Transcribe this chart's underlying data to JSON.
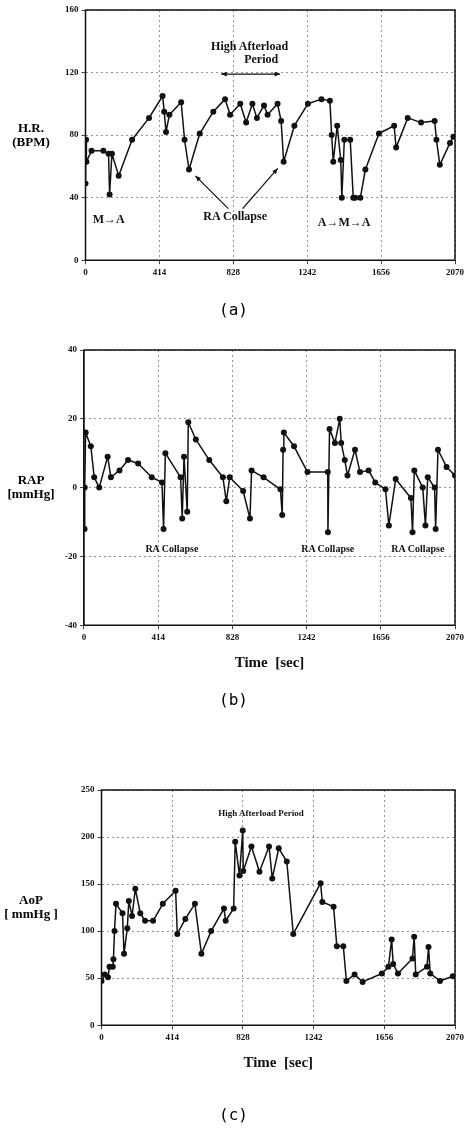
{
  "chart_data": [
    {
      "type": "line",
      "title": "(a)",
      "ylabel": "H.R.\n(BPM)",
      "marker": "circle",
      "line_style": "solid",
      "grid": true,
      "legend": false,
      "xlim": [
        0,
        2070
      ],
      "xticks": [
        0,
        414,
        828,
        1242,
        1656,
        2070
      ],
      "ylim": [
        0,
        160
      ],
      "yticks": [
        0,
        40,
        80,
        120,
        160
      ],
      "series": [
        {
          "color": "#111111",
          "x": [
            0,
            3,
            5,
            34,
            100,
            129,
            135,
            148,
            186,
            261,
            356,
            432,
            441,
            451,
            470,
            536,
            555,
            580,
            640,
            716,
            782,
            810,
            867,
            900,
            935,
            960,
            1000,
            1020,
            1076,
            1096,
            1110,
            1170,
            1246,
            1322,
            1369,
            1379,
            1388,
            1410,
            1430,
            1436,
            1450,
            1483,
            1500,
            1511,
            1540,
            1568,
            1644,
            1729,
            1740,
            1805,
            1880,
            1956,
            1966,
            1985,
            2042,
            2061
          ],
          "values": [
            49,
            77,
            63,
            70,
            70,
            68,
            42,
            68,
            54,
            77,
            91,
            105,
            95,
            82,
            93,
            101,
            77,
            58,
            81,
            95,
            103,
            93,
            100,
            88,
            100,
            91,
            99,
            93,
            100,
            89,
            63,
            86,
            100,
            103,
            102,
            80,
            63,
            86,
            64,
            40,
            77,
            77,
            40,
            40,
            40,
            58,
            81,
            86,
            72,
            91,
            88,
            89,
            77,
            61,
            75,
            79
          ]
        }
      ],
      "annotations": [
        "High Afterload Period",
        "M→A",
        {
          "text": "RA Collapse",
          "x": 580,
          "y": 58
        },
        "A→M→A"
      ]
    },
    {
      "type": "line",
      "title": "(b)",
      "xlabel": "Time  [sec]",
      "ylabel": "RAP\n[mmHg]",
      "marker": "circle",
      "line_style": "solid",
      "grid": true,
      "legend": false,
      "xlim": [
        0,
        2070
      ],
      "xticks": [
        0,
        414,
        828,
        1242,
        1656,
        2070
      ],
      "ylim": [
        -40,
        40
      ],
      "yticks": [
        -40,
        -20,
        0,
        20,
        40
      ],
      "series": [
        {
          "color": "#111111",
          "x": [
            3,
            4,
            9,
            38,
            57,
            85,
            132,
            150,
            198,
            246,
            302,
            378,
            435,
            444,
            454,
            539,
            548,
            558,
            576,
            582,
            624,
            699,
            775,
            794,
            813,
            888,
            926,
            935,
            1002,
            1096,
            1106,
            1111,
            1115,
            1172,
            1247,
            1360,
            1361,
            1370,
            1400,
            1427,
            1435,
            1455,
            1470,
            1512,
            1540,
            1588,
            1625,
            1682,
            1701,
            1739,
            1824,
            1833,
            1843,
            1890,
            1905,
            1918,
            1956,
            1962,
            1975,
            2023,
            2070
          ],
          "values": [
            -12,
            0,
            16,
            12,
            3,
            0,
            9,
            3,
            5,
            8,
            7,
            3,
            1.5,
            -12,
            10,
            3,
            -9,
            9,
            -7,
            19,
            14,
            8,
            3,
            -4,
            3,
            -1,
            -9,
            5,
            3,
            -0.5,
            -8,
            11,
            16,
            12,
            4.5,
            4.5,
            -13,
            17,
            13,
            20,
            13,
            8,
            3.5,
            11,
            4.5,
            5,
            1.5,
            -0.5,
            -11,
            2.5,
            -3,
            -13,
            5,
            0,
            -11,
            3,
            0,
            -12,
            11,
            6,
            3.5
          ]
        }
      ],
      "annotations": [
        "RA Collapse",
        "RA Collapse",
        "RA Collapse"
      ]
    },
    {
      "type": "line",
      "title": "(c)",
      "xlabel": "Time  [sec]",
      "ylabel": "AoP\n[ mmHg ]",
      "marker": "circle",
      "line_style": "solid",
      "grid": true,
      "legend": false,
      "xlim": [
        0,
        2070
      ],
      "xticks": [
        0,
        414,
        828,
        1242,
        1656,
        2070
      ],
      "ylim": [
        0,
        250
      ],
      "yticks": [
        0,
        50,
        100,
        150,
        200,
        250
      ],
      "series": [
        {
          "color": "#111111",
          "x": [
            0,
            19,
            38,
            47,
            66,
            70,
            76,
            85,
            123,
            132,
            151,
            160,
            179,
            198,
            227,
            255,
            302,
            359,
            434,
            444,
            491,
            547,
            585,
            642,
            717,
            727,
            774,
            783,
            808,
            827,
            830,
            878,
            925,
            981,
            1000,
            1038,
            1085,
            1123,
            1283,
            1293,
            1359,
            1378,
            1416,
            1434,
            1482,
            1529,
            1642,
            1680,
            1699,
            1708,
            1736,
            1821,
            1831,
            1840,
            1906,
            1915,
            1925,
            1982,
            2057
          ],
          "values": [
            47,
            54,
            51,
            62,
            62,
            70,
            100,
            129,
            119,
            76,
            103,
            132,
            116,
            145,
            119,
            111,
            111,
            129,
            143,
            97,
            113,
            129,
            76,
            100,
            124,
            111,
            124,
            195,
            159,
            207,
            164,
            190,
            163,
            190,
            156,
            188,
            174,
            97,
            151,
            131,
            126,
            84,
            84,
            47,
            54,
            46,
            55,
            62,
            91,
            65,
            55,
            71,
            94,
            54,
            62,
            83,
            55,
            47,
            52
          ]
        }
      ],
      "annotations": [
        "High Afterload Period"
      ]
    }
  ]
}
